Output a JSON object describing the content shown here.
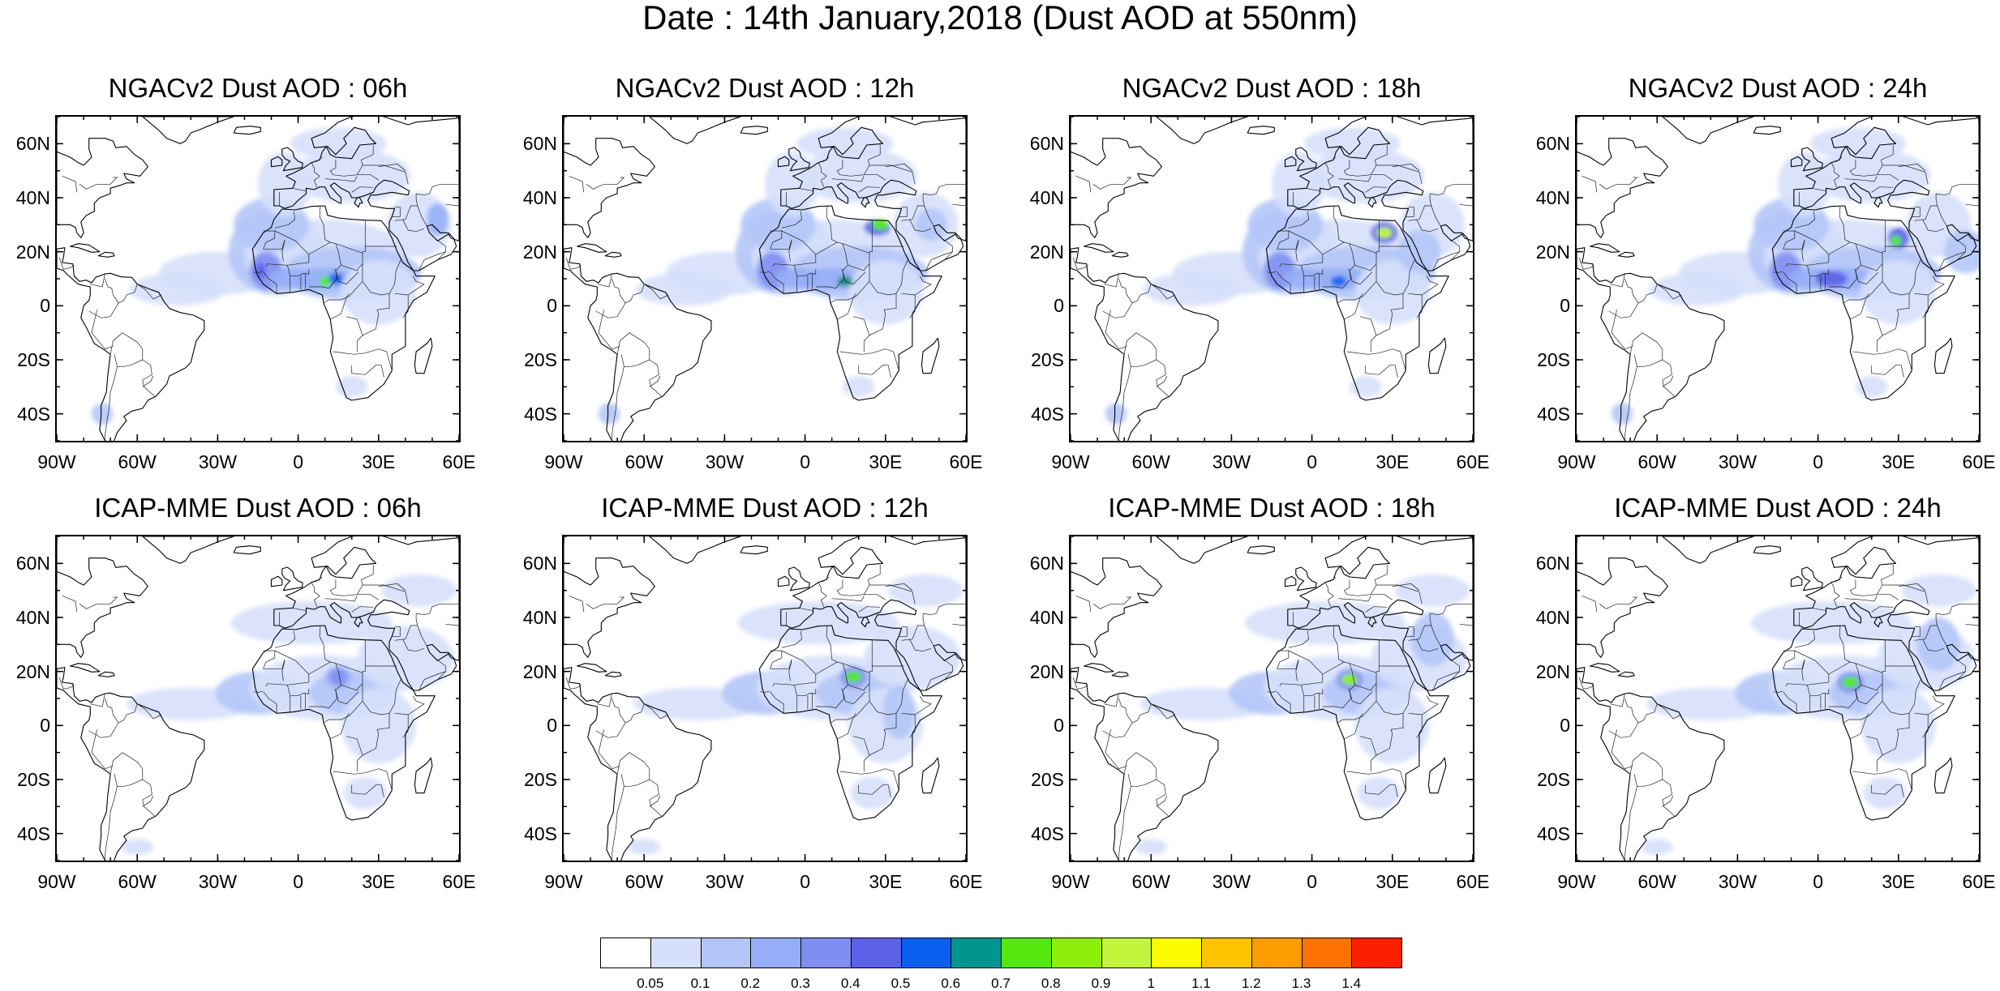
{
  "main_title": "Date : 14th January,2018 (Dust AOD at 550nm)",
  "panels": [
    {
      "title": "NGACv2 Dust AOD : 06h",
      "model": "NGACv2",
      "hour": 6
    },
    {
      "title": "NGACv2 Dust AOD : 12h",
      "model": "NGACv2",
      "hour": 12
    },
    {
      "title": "NGACv2 Dust AOD : 18h",
      "model": "NGACv2",
      "hour": 18
    },
    {
      "title": "NGACv2 Dust AOD : 24h",
      "model": "NGACv2",
      "hour": 24
    },
    {
      "title": "ICAP-MME Dust AOD : 06h",
      "model": "ICAP-MME",
      "hour": 6
    },
    {
      "title": "ICAP-MME Dust AOD : 12h",
      "model": "ICAP-MME",
      "hour": 12
    },
    {
      "title": "ICAP-MME Dust AOD : 18h",
      "model": "ICAP-MME",
      "hour": 18
    },
    {
      "title": "ICAP-MME Dust AOD : 24h",
      "model": "ICAP-MME",
      "hour": 24
    }
  ],
  "axes": {
    "lat_ticks": [
      "60N",
      "40N",
      "20N",
      "0",
      "20S",
      "40S"
    ],
    "lat_values": [
      60,
      40,
      20,
      0,
      -20,
      -40
    ],
    "lon_ticks": [
      "90W",
      "60W",
      "30W",
      "0",
      "30E",
      "60E"
    ],
    "lon_values": [
      -90,
      -60,
      -30,
      0,
      30,
      60
    ],
    "lat_range": [
      -50,
      70
    ],
    "lon_range": [
      -90,
      60
    ]
  },
  "colorbar": {
    "labels": [
      "0.05",
      "0.1",
      "0.2",
      "0.3",
      "0.4",
      "0.5",
      "0.6",
      "0.7",
      "0.8",
      "0.9",
      "1",
      "1.1",
      "1.2",
      "1.3",
      "1.4"
    ],
    "colors": [
      "#ffffff",
      "#d6e0fb",
      "#b4c6f8",
      "#95aef7",
      "#7f8ef2",
      "#5b62e8",
      "#0a5ff0",
      "#00958e",
      "#55e80f",
      "#8ef00a",
      "#c3f43c",
      "#fcfc00",
      "#fcc400",
      "#fc9c00",
      "#fc7200",
      "#fc2000"
    ]
  }
}
